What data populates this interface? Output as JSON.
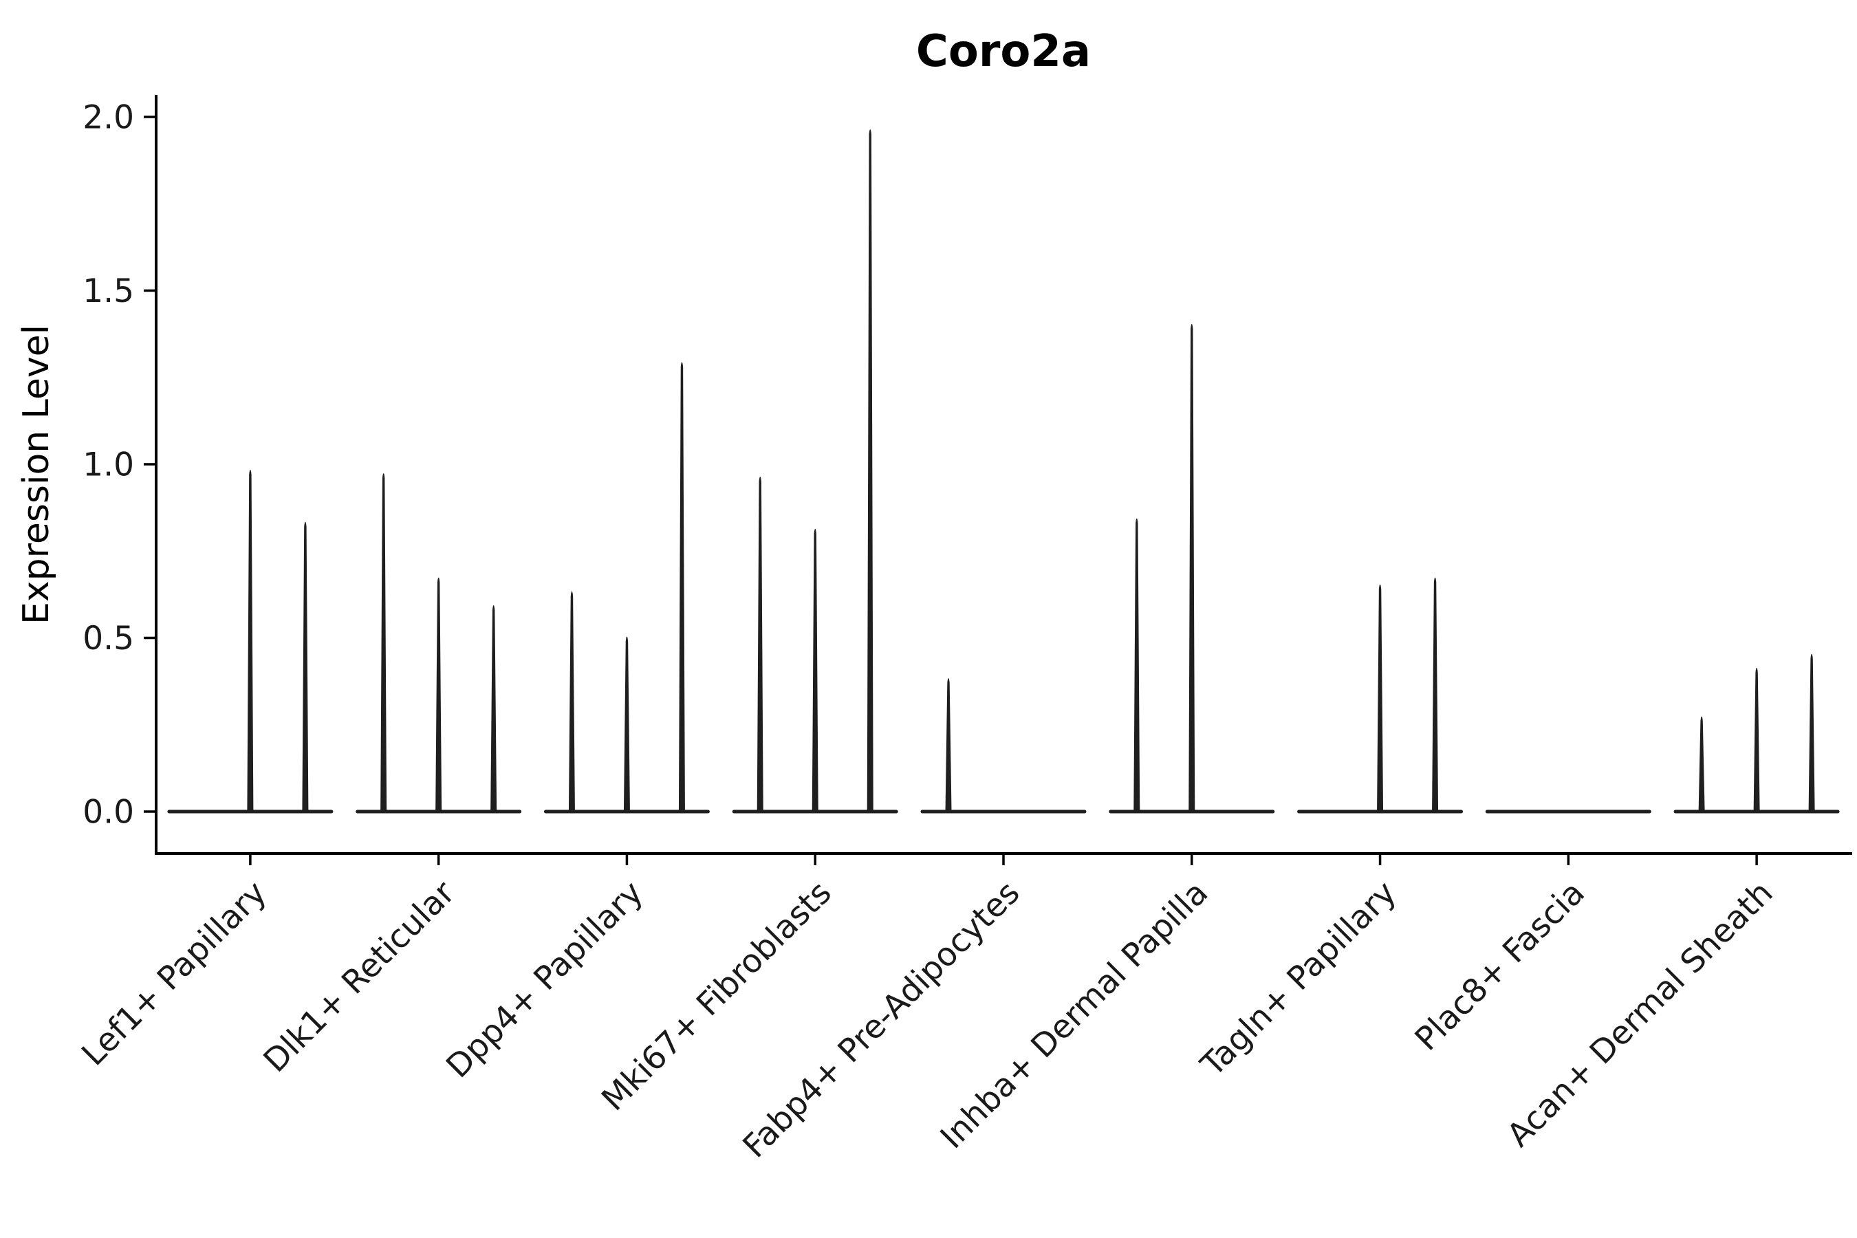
{
  "chart_data": {
    "type": "violin",
    "title": "Coro2a",
    "ylabel": "Expression Level",
    "xlabel": "",
    "ylim": [
      0,
      2.0
    ],
    "ytick_values": [
      0.0,
      0.5,
      1.0,
      1.5,
      2.0
    ],
    "yticks": [
      "0.0",
      "0.5",
      "1.0",
      "1.5",
      "2.0"
    ],
    "x_tick_rotation": 45,
    "grid": false,
    "legend": "none",
    "background_color": "#ffffff",
    "violin_color": "#1f1f1f",
    "axis_color": "#000000",
    "categories": [
      "Lef1+ Papillary",
      "Dlk1+ Reticular",
      "Dpp4+ Papillary",
      "Mki67+ Fibroblasts",
      "Fabp4+ Pre-Adipocytes",
      "Inhba+ Dermal Papilla",
      "Tagln+ Papillary",
      "Plac8+ Fascia",
      "Acan+ Dermal Sheath"
    ],
    "series_note": "Each category shows up to three very thin violins; nearly all density mass sits at expression 0 (flat base), with a narrow spike reaching the listed maximum expression value. 0 means no spike (flat baseline only).",
    "series": [
      {
        "name": "left violin",
        "values": [
          0,
          0.98,
          0.64,
          0.97,
          0.39,
          0.85,
          0,
          0,
          0.28
        ]
      },
      {
        "name": "middle violin",
        "values": [
          0.99,
          0.68,
          0.51,
          0.82,
          0,
          1.41,
          0.66,
          0,
          0.42
        ]
      },
      {
        "name": "right violin",
        "values": [
          0.84,
          0.6,
          1.3,
          1.97,
          0,
          0,
          0.68,
          0,
          0.46
        ]
      }
    ]
  }
}
